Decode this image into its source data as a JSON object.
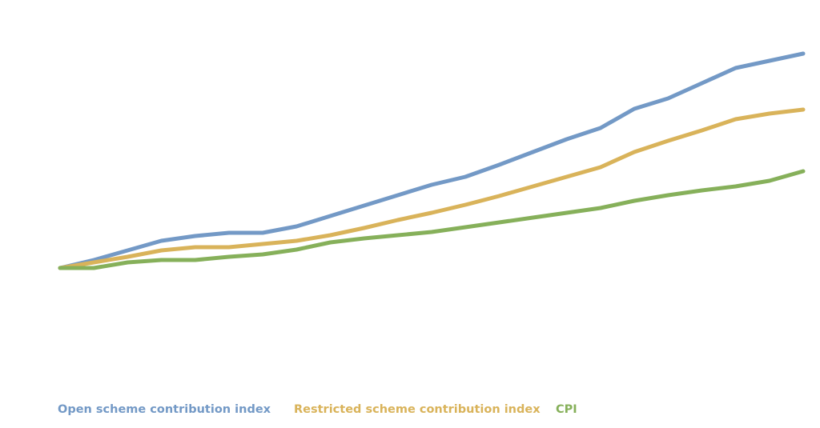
{
  "chart_data": {
    "type": "line",
    "categories": [
      null,
      null,
      null,
      null,
      null,
      null,
      null,
      null,
      null,
      null,
      null,
      null,
      null,
      null,
      null,
      null,
      null,
      null,
      null,
      null,
      null,
      null,
      null
    ],
    "series": [
      {
        "name": "Open scheme contribution index",
        "color": "#7399c6",
        "values": [
          100,
          105,
          111,
          117,
          120,
          122,
          122,
          126,
          132.5,
          139,
          145.5,
          152,
          157,
          164.5,
          172.5,
          180.5,
          187.5,
          199.5,
          206,
          215.5,
          225,
          229.5,
          234
        ]
      },
      {
        "name": "Restricted scheme contribution index",
        "color": "#d9b35a",
        "values": [
          100,
          103.5,
          107,
          111,
          113,
          113,
          115,
          117,
          120.5,
          125,
          130,
          134.5,
          139.5,
          145,
          151,
          157,
          163,
          172.5,
          179.5,
          186,
          193,
          196.5,
          199
        ]
      },
      {
        "name": "CPI",
        "color": "#86b05a",
        "values": [
          100,
          100,
          103.5,
          105,
          105,
          107,
          108.5,
          111.5,
          116,
          118.5,
          120.5,
          122.5,
          125.5,
          128.5,
          131.5,
          134.5,
          137.5,
          142,
          145.5,
          148.5,
          151,
          154.5,
          160.5
        ]
      }
    ],
    "ylim": [
      0,
      267.5
    ]
  }
}
